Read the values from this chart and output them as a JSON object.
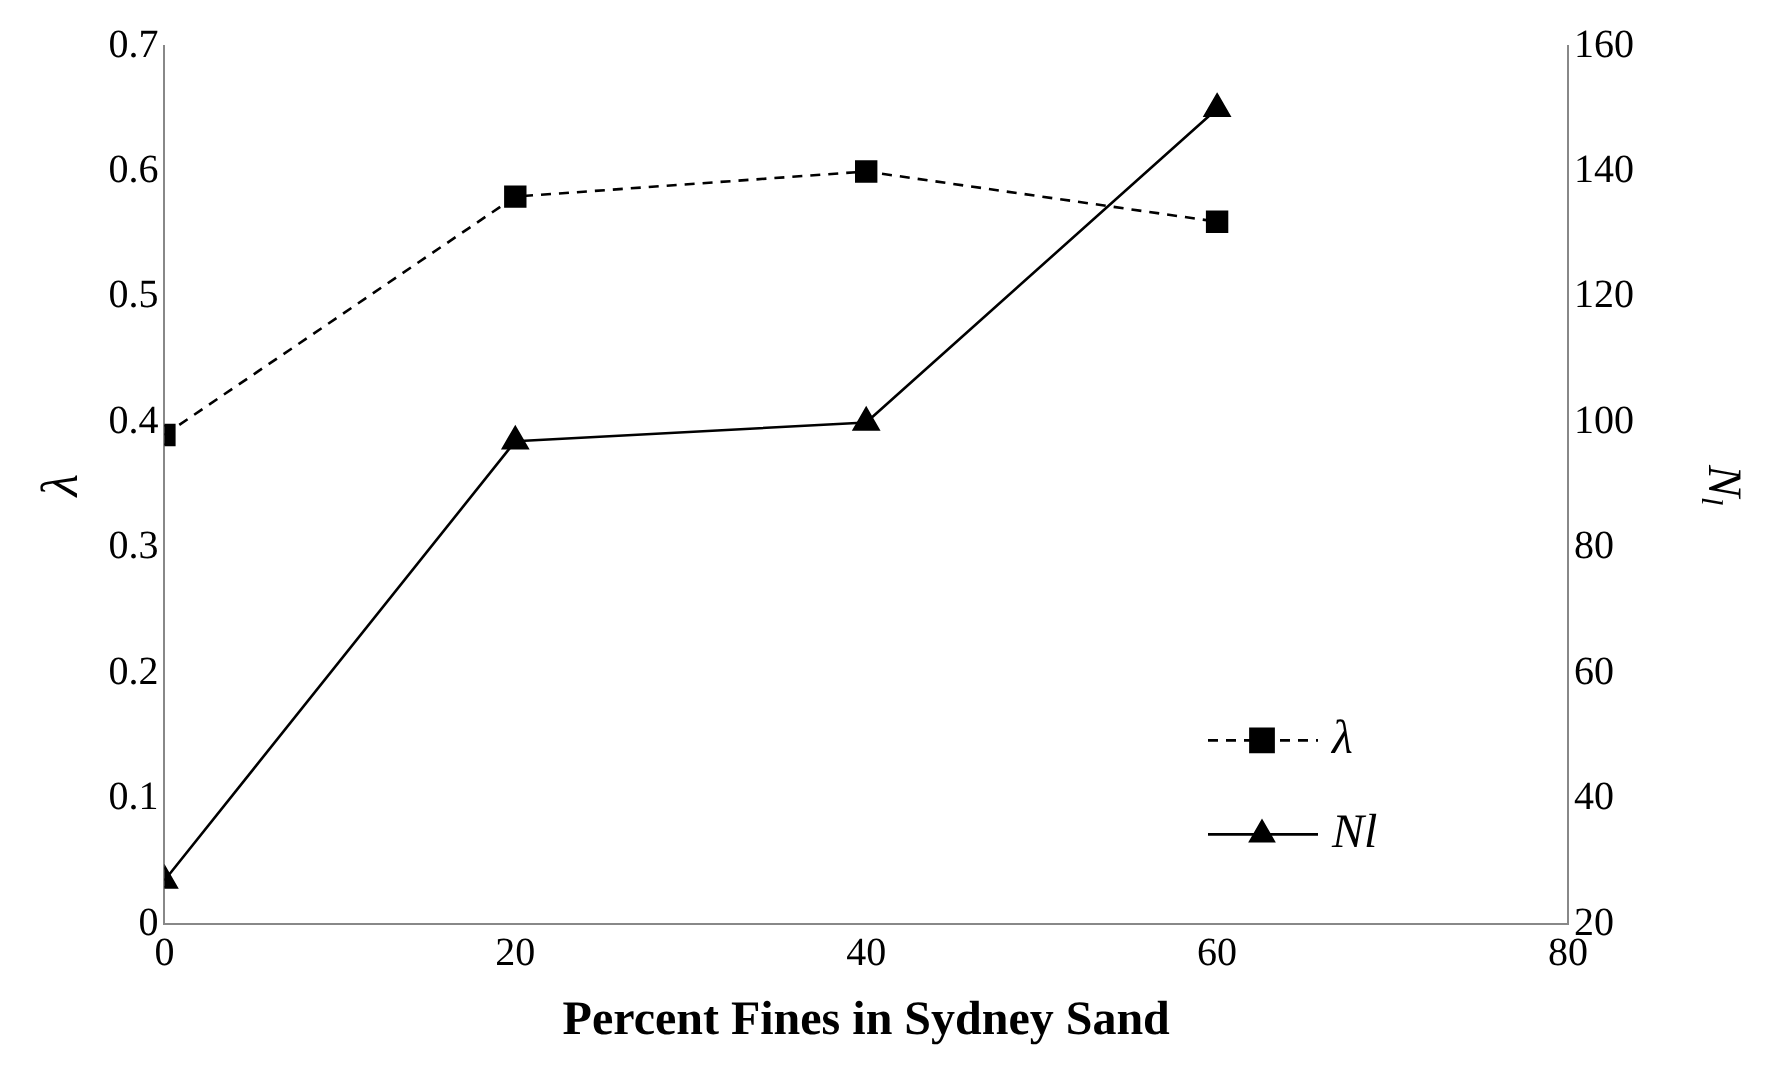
{
  "chart_data": {
    "type": "line",
    "xlabel": "Percent Fines in Sydney Sand",
    "ylabel": "λ",
    "y2label": "N$_{l}$",
    "x": [
      0,
      20,
      40,
      60
    ],
    "series": [
      {
        "name": "λ",
        "color": "#000000",
        "values": [
          0.39,
          0.58,
          0.6,
          0.56
        ],
        "marker": "square",
        "line_style": "dashed"
      },
      {
        "name": "Nl",
        "color": "#000000",
        "values": [
          27,
          97,
          100,
          150
        ],
        "axis": "y2",
        "marker": "triangle",
        "line_style": "solid"
      }
    ],
    "xlim": [
      0,
      80
    ],
    "xticks": [
      0,
      20,
      40,
      60,
      80
    ],
    "ylim": [
      0,
      0.7
    ],
    "yticks": [
      0,
      0.1,
      0.2,
      0.3,
      0.4,
      0.5,
      0.6,
      0.7
    ],
    "y2lim": [
      20,
      160
    ],
    "y2ticks": [
      20,
      40,
      60,
      80,
      100,
      120,
      140,
      160
    ],
    "grid": false,
    "legend": "bottom right"
  }
}
